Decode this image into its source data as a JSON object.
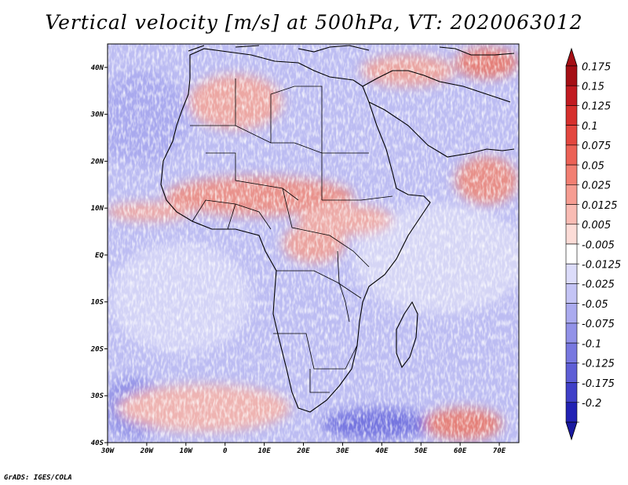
{
  "title": "Vertical velocity [m/s] at 500hPa, VT: 2020063012",
  "credit": "GrADS: IGES/COLA",
  "map": {
    "lon_range": [
      -30,
      75
    ],
    "lat_range": [
      -40,
      45
    ],
    "x_ticks": [
      {
        "lon": -30,
        "label": "30W"
      },
      {
        "lon": -20,
        "label": "20W"
      },
      {
        "lon": -10,
        "label": "10W"
      },
      {
        "lon": 0,
        "label": "0"
      },
      {
        "lon": 10,
        "label": "10E"
      },
      {
        "lon": 20,
        "label": "20E"
      },
      {
        "lon": 30,
        "label": "30E"
      },
      {
        "lon": 40,
        "label": "40E"
      },
      {
        "lon": 50,
        "label": "50E"
      },
      {
        "lon": 60,
        "label": "60E"
      },
      {
        "lon": 70,
        "label": "70E"
      }
    ],
    "y_ticks": [
      {
        "lat": 40,
        "label": "40N"
      },
      {
        "lat": 30,
        "label": "30N"
      },
      {
        "lat": 20,
        "label": "20N"
      },
      {
        "lat": 10,
        "label": "10N"
      },
      {
        "lat": 0,
        "label": "EQ"
      },
      {
        "lat": -10,
        "label": "10S"
      },
      {
        "lat": -20,
        "label": "20S"
      },
      {
        "lat": -30,
        "label": "30S"
      },
      {
        "lat": -40,
        "label": "40S"
      }
    ]
  },
  "colorbar": {
    "levels": [
      {
        "label": "0.175",
        "color": "#a50f15"
      },
      {
        "label": "0.15",
        "color": "#c11b21"
      },
      {
        "label": "0.125",
        "color": "#d6302d"
      },
      {
        "label": "0.1",
        "color": "#e3473f"
      },
      {
        "label": "0.075",
        "color": "#ec6256"
      },
      {
        "label": "0.05",
        "color": "#f27f72"
      },
      {
        "label": "0.025",
        "color": "#f69d92"
      },
      {
        "label": "0.0125",
        "color": "#f9bcb4"
      },
      {
        "label": "0.005",
        "color": "#fcdcd7"
      },
      {
        "label": "-0.005",
        "color": "#ffffff"
      },
      {
        "label": "-0.0125",
        "color": "#dcdcfa"
      },
      {
        "label": "-0.025",
        "color": "#c4c4f5"
      },
      {
        "label": "-0.05",
        "color": "#ababef"
      },
      {
        "label": "-0.075",
        "color": "#9292e8"
      },
      {
        "label": "-0.1",
        "color": "#7878e0"
      },
      {
        "label": "-0.125",
        "color": "#5e5ed6"
      },
      {
        "label": "-0.175",
        "color": "#4040c8"
      },
      {
        "label": "-0.2",
        "color": "#2222b4"
      }
    ],
    "bottom_color": "#1a1aa0"
  }
}
